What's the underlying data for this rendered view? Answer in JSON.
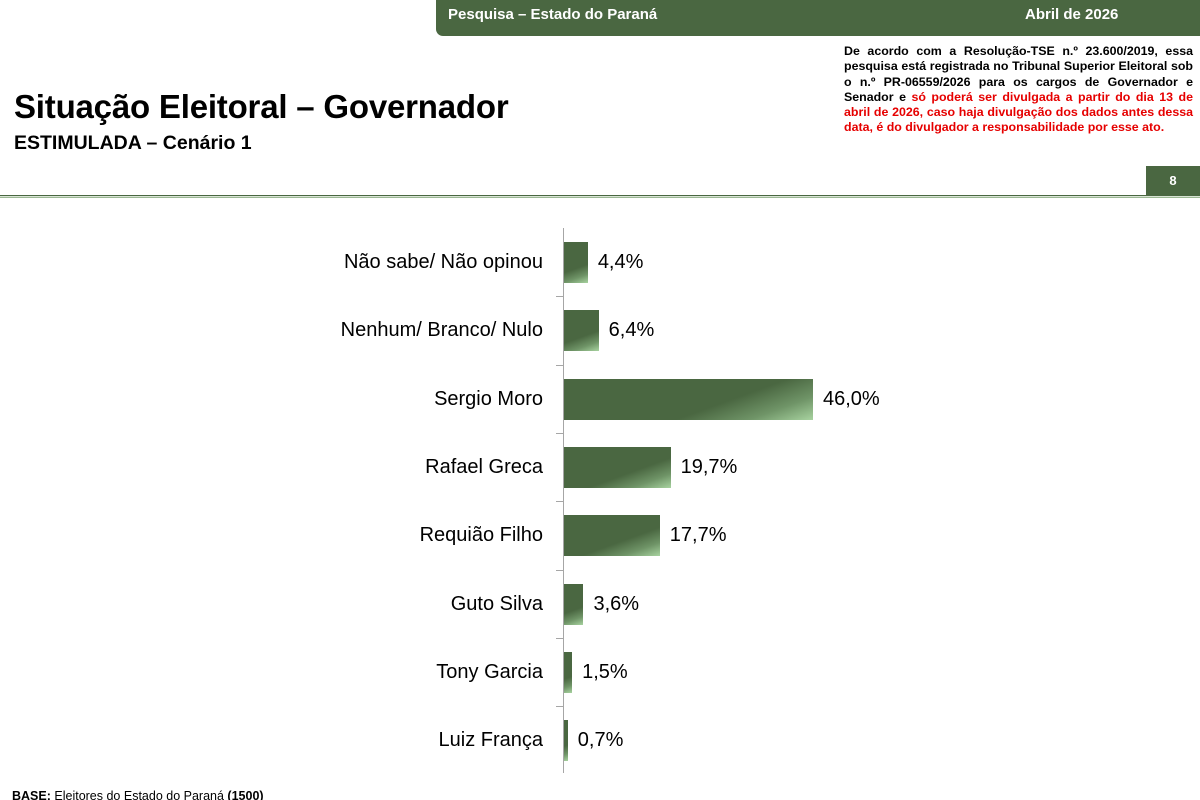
{
  "header": {
    "survey_label": "Pesquisa – Estado do Paraná",
    "date_label": "Abril de 2026",
    "banner_color": "#4a6741"
  },
  "disclaimer": {
    "text_black": "De acordo com a Resolução-TSE n.º 23.600/2019, essa pesquisa está registrada no Tribunal Superior Eleitoral sob o n.º PR-06559/2026 para os cargos de Governador e Senador e ",
    "text_red": "só poderá ser divulgada a partir do dia 13 de abril de 2026, caso haja divulgação dos dados antes dessa data, é do divulgador a responsabilidade por esse ato.",
    "red_color": "#e60000"
  },
  "page": {
    "title": "Situação Eleitoral – Governador",
    "subtitle": "ESTIMULADA – Cenário 1",
    "page_number": "8"
  },
  "footer": {
    "base_label": "BASE:",
    "base_text": " Eleitores do Estado do Paraná ",
    "base_count": "(1500)"
  },
  "chart_data": {
    "type": "bar",
    "orientation": "horizontal",
    "title": "Situação Eleitoral – Governador",
    "subtitle": "ESTIMULADA – Cenário 1",
    "xlabel": "",
    "ylabel": "",
    "unit": "%",
    "grid": false,
    "legend": null,
    "bar_color": "#4a6741",
    "categories": [
      "Não sabe/ Não opinou",
      "Nenhum/ Branco/ Nulo",
      "Sergio Moro",
      "Rafael Greca",
      "Requião Filho",
      "Guto Silva",
      "Tony Garcia",
      "Luiz França"
    ],
    "values": [
      4.4,
      6.4,
      46.0,
      19.7,
      17.7,
      3.6,
      1.5,
      0.7
    ],
    "value_labels": [
      "4,4%",
      "6,4%",
      "46,0%",
      "19,7%",
      "17,7%",
      "3,6%",
      "1,5%",
      "0,7%"
    ],
    "xlim": [
      0,
      50
    ]
  }
}
